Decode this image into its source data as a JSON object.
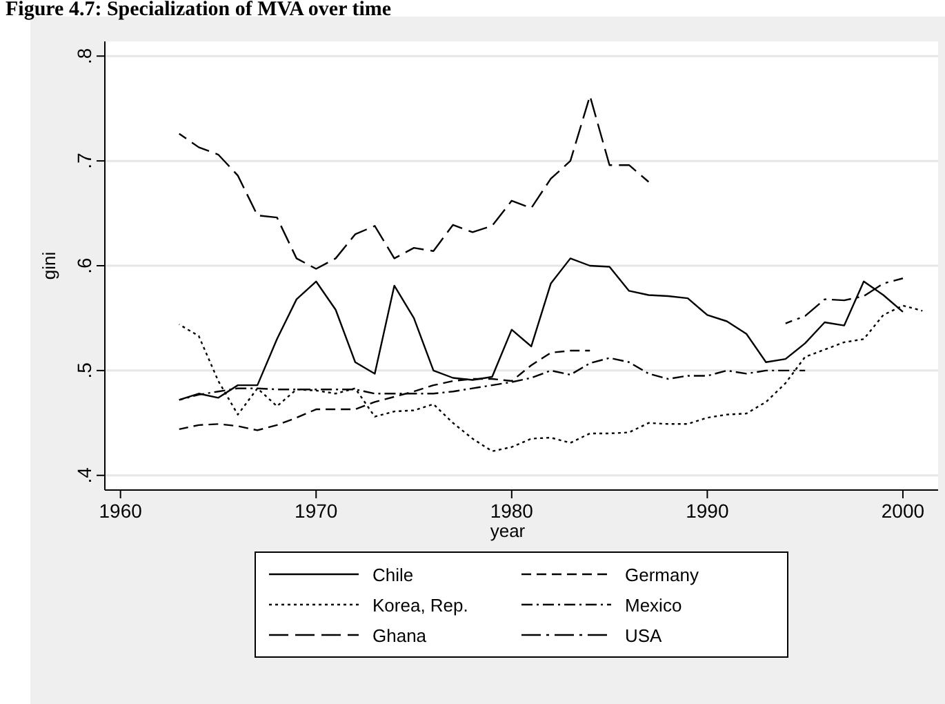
{
  "chart_data": {
    "type": "line",
    "title": "Figure 4.7: Specialization of MVA over time",
    "xlabel": "year",
    "ylabel": "gini",
    "xlim": [
      1959.2,
      2001.8
    ],
    "xticks": [
      1960,
      1970,
      1980,
      1990,
      2000
    ],
    "ylim": [
      0.386,
      0.814
    ],
    "yticks": [
      {
        "value": 0.4,
        "label": ".4"
      },
      {
        "value": 0.5,
        "label": ".5"
      },
      {
        "value": 0.6,
        "label": ".6"
      },
      {
        "value": 0.7,
        "label": ".7"
      },
      {
        "value": 0.8,
        "label": ".8"
      }
    ],
    "grid": "y",
    "legend": "bottom",
    "marker": "none",
    "series": [
      {
        "name": "Chile",
        "color": "#000000",
        "line_style": "solid",
        "x": [
          1963,
          1964,
          1965,
          1966,
          1967,
          1968,
          1969,
          1970,
          1971,
          1972,
          1973,
          1974,
          1975,
          1976,
          1977,
          1978,
          1979,
          1980,
          1981,
          1982,
          1983,
          1984,
          1985,
          1986,
          1987,
          1988,
          1989,
          1990,
          1991,
          1992,
          1993,
          1994,
          1995,
          1996,
          1997,
          1998,
          1999,
          2000
        ],
        "values": [
          0.472,
          0.478,
          0.474,
          0.486,
          0.486,
          0.53,
          0.568,
          0.585,
          0.558,
          0.508,
          0.497,
          0.581,
          0.55,
          0.5,
          0.493,
          0.491,
          0.494,
          0.539,
          0.523,
          0.583,
          0.607,
          0.6,
          0.599,
          0.576,
          0.572,
          0.571,
          0.569,
          0.553,
          0.547,
          0.535,
          0.508,
          0.511,
          0.526,
          0.546,
          0.543,
          0.585,
          0.572,
          0.556
        ]
      },
      {
        "name": "Germany",
        "color": "#000000",
        "line_style": "dashed",
        "x": [
          1963,
          1964,
          1965,
          1966,
          1967,
          1968,
          1969,
          1970,
          1971,
          1972,
          1973,
          1974,
          1975,
          1976,
          1977,
          1978,
          1979,
          1980,
          1981,
          1982,
          1983,
          1984
        ],
        "values": [
          0.444,
          0.448,
          0.449,
          0.447,
          0.443,
          0.448,
          0.455,
          0.463,
          0.463,
          0.463,
          0.47,
          0.475,
          0.48,
          0.486,
          0.49,
          0.492,
          0.492,
          0.49,
          0.505,
          0.517,
          0.519,
          0.519
        ]
      },
      {
        "name": "Korea, Rep.",
        "color": "#000000",
        "line_style": "dotted",
        "x": [
          1963,
          1964,
          1965,
          1966,
          1967,
          1968,
          1969,
          1970,
          1971,
          1972,
          1973,
          1974,
          1975,
          1976,
          1977,
          1978,
          1979,
          1980,
          1981,
          1982,
          1983,
          1984,
          1985,
          1986,
          1987,
          1988,
          1989,
          1990,
          1991,
          1992,
          1993,
          1994,
          1995,
          1996,
          1997,
          1998,
          1999,
          2000,
          2001
        ],
        "values": [
          0.544,
          0.533,
          0.49,
          0.458,
          0.483,
          0.466,
          0.482,
          0.481,
          0.478,
          0.483,
          0.456,
          0.461,
          0.462,
          0.468,
          0.45,
          0.435,
          0.423,
          0.427,
          0.435,
          0.436,
          0.431,
          0.44,
          0.44,
          0.441,
          0.45,
          0.449,
          0.449,
          0.455,
          0.458,
          0.459,
          0.47,
          0.488,
          0.513,
          0.52,
          0.527,
          0.53,
          0.553,
          0.562,
          0.557
        ]
      },
      {
        "name": "Mexico",
        "color": "#000000",
        "line_style": "dashdot",
        "x": [
          1963,
          1964,
          1965,
          1966,
          1967,
          1968,
          1969,
          1970,
          1971,
          1972,
          1973,
          1974,
          1975,
          1976,
          1977,
          1978,
          1979,
          1980,
          1981,
          1982,
          1983,
          1984,
          1985,
          1986,
          1987,
          1988,
          1989,
          1990,
          1991,
          1992,
          1993,
          1994,
          1995
        ],
        "values": [
          0.472,
          0.477,
          0.48,
          0.483,
          0.483,
          0.482,
          0.482,
          0.482,
          0.482,
          0.482,
          0.478,
          0.478,
          0.478,
          0.478,
          0.48,
          0.483,
          0.486,
          0.489,
          0.493,
          0.5,
          0.496,
          0.507,
          0.512,
          0.508,
          0.497,
          0.492,
          0.495,
          0.495,
          0.5,
          0.497,
          0.5,
          0.5,
          0.5
        ]
      },
      {
        "name": "Ghana",
        "color": "#000000",
        "line_style": "longdash",
        "x": [
          1963,
          1964,
          1965,
          1966,
          1967,
          1968,
          1969,
          1970,
          1971,
          1972,
          1973,
          1974,
          1975,
          1976,
          1977,
          1978,
          1979,
          1980,
          1981,
          1982,
          1983,
          1984,
          1985,
          1986,
          1987
        ],
        "values": [
          0.726,
          0.713,
          0.706,
          0.686,
          0.648,
          0.646,
          0.607,
          0.597,
          0.607,
          0.63,
          0.638,
          0.607,
          0.617,
          0.614,
          0.639,
          0.632,
          0.638,
          0.662,
          0.655,
          0.683,
          0.7,
          0.762,
          0.696,
          0.696,
          0.68
        ]
      },
      {
        "name": "USA",
        "color": "#000000",
        "line_style": "longdashdot",
        "x": [
          1994,
          1995,
          1996,
          1997,
          1998,
          1999,
          2000
        ],
        "values": [
          0.545,
          0.552,
          0.568,
          0.567,
          0.571,
          0.583,
          0.588
        ]
      }
    ]
  }
}
